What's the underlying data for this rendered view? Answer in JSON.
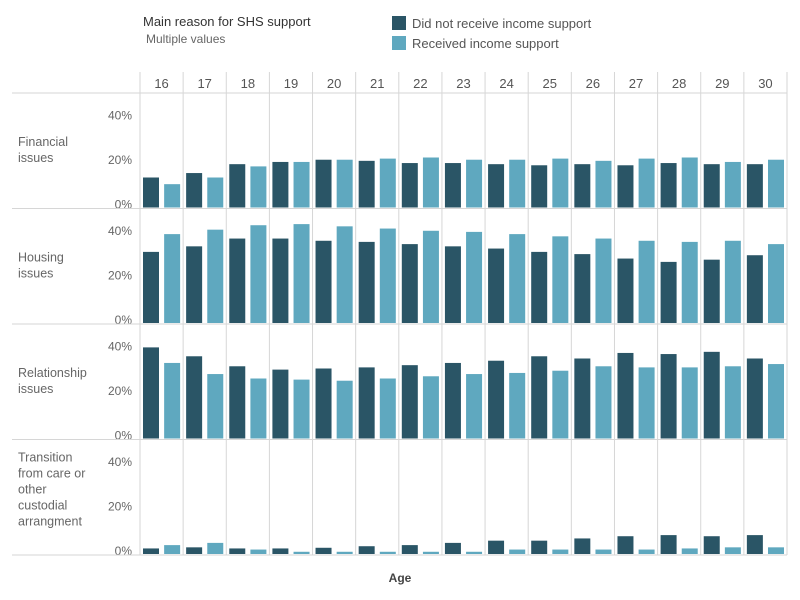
{
  "filter": {
    "title": "Main reason for SHS support",
    "value": "Multiple values"
  },
  "legend": [
    {
      "label": "Did not receive income support",
      "color": "#2a5566"
    },
    {
      "label": "Received income support",
      "color": "#5fa8bf"
    }
  ],
  "chart_data": {
    "type": "bar",
    "xlabel": "Age",
    "ylim": [
      0,
      45
    ],
    "yticks": [
      0,
      20,
      40
    ],
    "ytick_labels": [
      "0%",
      "20%",
      "40%"
    ],
    "categories": [
      "16",
      "17",
      "18",
      "19",
      "20",
      "21",
      "22",
      "23",
      "24",
      "25",
      "26",
      "27",
      "28",
      "29",
      "30"
    ],
    "series_names": [
      "Did not receive income support",
      "Received income support"
    ],
    "series_colors": [
      "#2a5566",
      "#5fa8bf"
    ],
    "rows": [
      {
        "label": [
          "Financial",
          "issues"
        ],
        "series": [
          {
            "name": "Did not receive income support",
            "values": [
              13.5,
              15.5,
              19.5,
              20.5,
              21.5,
              21,
              20,
              20,
              19.5,
              19,
              19.5,
              19,
              20,
              19.5,
              19.5
            ]
          },
          {
            "name": "Received income support",
            "values": [
              10.5,
              13.5,
              18.5,
              20.5,
              21.5,
              22,
              22.5,
              21.5,
              21.5,
              22,
              21,
              22,
              22.5,
              20.5,
              21.5
            ]
          }
        ]
      },
      {
        "label": [
          "Housing",
          "issues"
        ],
        "series": [
          {
            "name": "Did not receive income support",
            "values": [
              32,
              34.5,
              38,
              38,
              37,
              36.5,
              35.5,
              34.5,
              33.5,
              32,
              31,
              29,
              27.5,
              28.5,
              30.5
            ]
          },
          {
            "name": "Received income support",
            "values": [
              40,
              42,
              44,
              44.5,
              43.5,
              42.5,
              41.5,
              41,
              40,
              39,
              38,
              37,
              36.5,
              37,
              35.5
            ]
          }
        ]
      },
      {
        "label": [
          "Relationship",
          "issues"
        ],
        "series": [
          {
            "name": "Did not receive income support",
            "values": [
              41,
              37,
              32.5,
              31,
              31.5,
              32,
              33,
              34,
              35,
              37,
              36,
              38.5,
              38,
              39,
              36
            ]
          },
          {
            "name": "Received income support",
            "values": [
              34,
              29,
              27,
              26.5,
              26,
              27,
              28,
              29,
              29.5,
              30.5,
              32.5,
              32,
              32,
              32.5,
              33.5
            ]
          }
        ]
      },
      {
        "label": [
          "Transition",
          "from care or",
          "other",
          "custodial",
          "arrangment"
        ],
        "series": [
          {
            "name": "Did not receive income support",
            "values": [
              2.5,
              3,
              2.5,
              2.5,
              2.8,
              3.5,
              4,
              5,
              6,
              6,
              7,
              8,
              8.5,
              8,
              8.5
            ]
          },
          {
            "name": "Received income support",
            "values": [
              4,
              5,
              2,
              1,
              1,
              1,
              1,
              1,
              2,
              2,
              2,
              2,
              2.5,
              3,
              3
            ]
          }
        ]
      }
    ]
  }
}
